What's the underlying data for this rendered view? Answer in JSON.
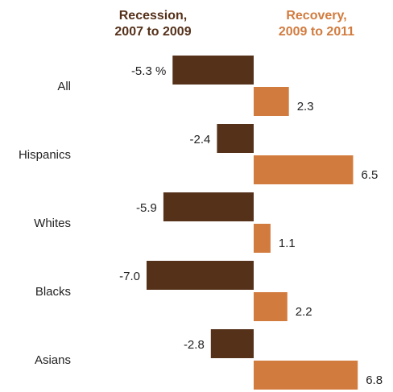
{
  "chart_data": {
    "type": "bar",
    "orientation": "horizontal",
    "categories": [
      "All",
      "Hispanics",
      "Whites",
      "Blacks",
      "Asians"
    ],
    "series": [
      {
        "name_lines": [
          "Recession,",
          "2007 to 2009"
        ],
        "color": "#55311a",
        "values": [
          -5.3,
          -2.4,
          -5.9,
          -7.0,
          -2.8
        ],
        "labels": [
          "-5.3 %",
          "-2.4",
          "-5.9",
          "-7.0",
          "-2.8"
        ]
      },
      {
        "name_lines": [
          "Recovery,",
          "2009 to 2011"
        ],
        "color": "#d27b3e",
        "values": [
          2.3,
          6.5,
          1.1,
          2.2,
          6.8
        ],
        "labels": [
          "2.3",
          "6.5",
          "1.1",
          "2.2",
          "6.8"
        ]
      }
    ],
    "xlim": [
      -7.0,
      6.8
    ],
    "grid": false,
    "legend": "top, as column headers"
  }
}
